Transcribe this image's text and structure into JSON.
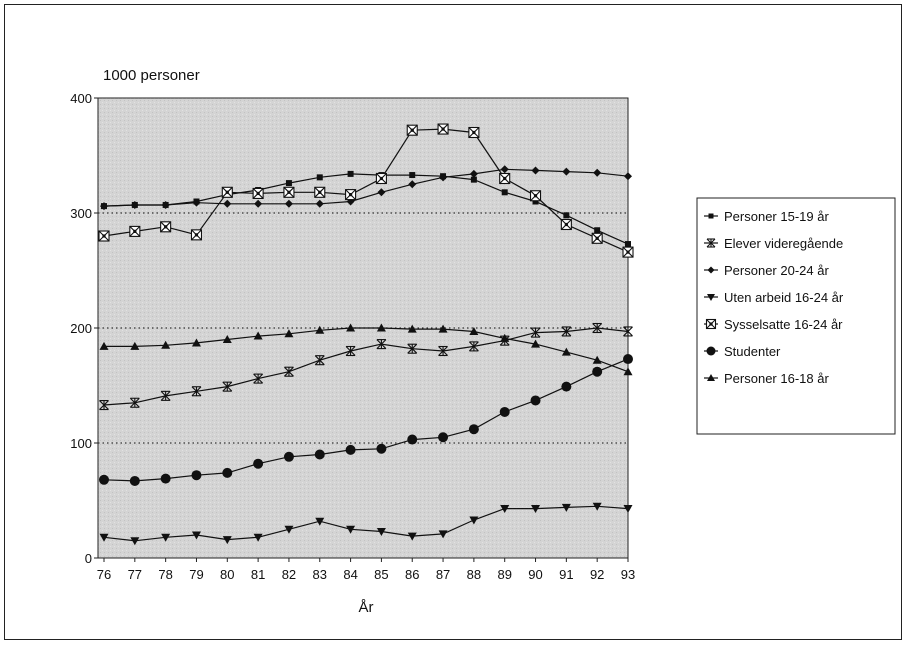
{
  "chart_data": {
    "type": "line",
    "title": "",
    "ylabel": "1000 personer",
    "xlabel": "År",
    "x": [
      "76",
      "77",
      "78",
      "79",
      "80",
      "81",
      "82",
      "83",
      "84",
      "85",
      "86",
      "87",
      "88",
      "89",
      "90",
      "91",
      "92",
      "93"
    ],
    "ylim": [
      0,
      400
    ],
    "yticks": [
      "0",
      "100",
      "200",
      "300",
      "400"
    ],
    "grid": "dotted horizontal at 100, 200, 300",
    "legend_position": "right",
    "series": [
      {
        "name": "Personer 15-19 år",
        "marker": "square",
        "values": [
          306,
          307,
          307,
          310,
          316,
          320,
          326,
          331,
          334,
          333,
          333,
          332,
          329,
          318,
          310,
          298,
          285,
          273
        ]
      },
      {
        "name": "Elever videregående",
        "marker": "star",
        "values": [
          133,
          135,
          141,
          145,
          149,
          156,
          162,
          172,
          180,
          186,
          182,
          180,
          184,
          189,
          196,
          197,
          200,
          197
        ]
      },
      {
        "name": "Personer 20-24 år",
        "marker": "diamond",
        "values": [
          306,
          307,
          307,
          309,
          308,
          308,
          308,
          308,
          310,
          318,
          325,
          331,
          334,
          338,
          337,
          336,
          335,
          332
        ]
      },
      {
        "name": "Uten arbeid 16-24 år",
        "marker": "triangle-down",
        "values": [
          18,
          15,
          18,
          20,
          16,
          18,
          25,
          32,
          25,
          23,
          19,
          21,
          33,
          43,
          43,
          44,
          45,
          43
        ]
      },
      {
        "name": "Sysselsatte 16-24 år",
        "marker": "boxed-x",
        "values": [
          280,
          284,
          288,
          281,
          318,
          317,
          318,
          318,
          316,
          330,
          372,
          373,
          370,
          330,
          315,
          290,
          278,
          266
        ]
      },
      {
        "name": "Studenter",
        "marker": "circle",
        "values": [
          68,
          67,
          69,
          72,
          74,
          82,
          88,
          90,
          94,
          95,
          103,
          105,
          112,
          127,
          137,
          149,
          162,
          173
        ]
      },
      {
        "name": "Personer 16-18 år",
        "marker": "triangle-up",
        "values": [
          184,
          184,
          185,
          187,
          190,
          193,
          195,
          198,
          200,
          200,
          199,
          199,
          197,
          191,
          186,
          179,
          172,
          162
        ]
      }
    ]
  }
}
